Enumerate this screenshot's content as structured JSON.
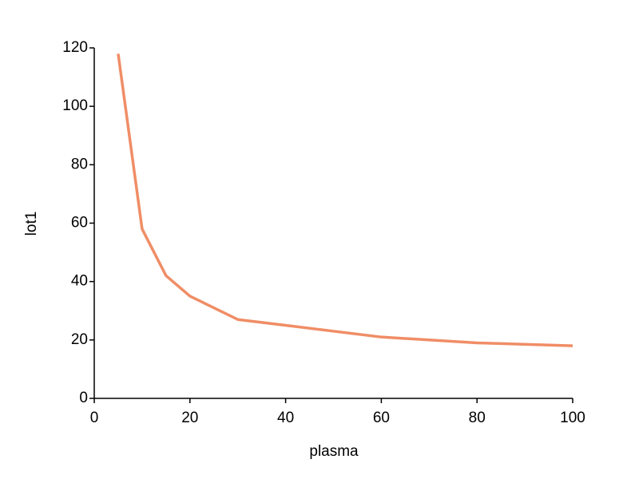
{
  "chart_data": {
    "type": "line",
    "x_label": "plasma",
    "y_label": "lot1",
    "x": [
      5,
      10,
      15,
      20,
      30,
      40,
      60,
      80,
      100
    ],
    "series": [
      {
        "name": "lot1",
        "color": "#f08d66",
        "values": [
          118,
          58,
          42,
          35,
          27,
          25,
          21,
          19,
          18
        ]
      }
    ],
    "xlim": [
      0,
      100
    ],
    "xticks": [
      0,
      20,
      40,
      60,
      80,
      100
    ],
    "ylim": [
      0,
      120
    ],
    "yticks": [
      0,
      20,
      40,
      60,
      80,
      100,
      120
    ],
    "grid": false,
    "legend": false
  }
}
